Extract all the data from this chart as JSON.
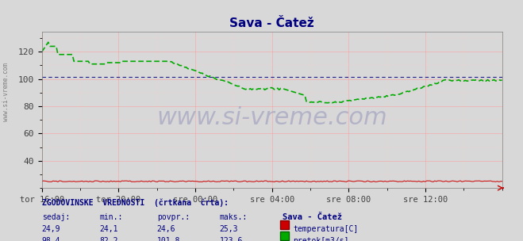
{
  "title": "Sava - Čatež",
  "title_color": "#000080",
  "bg_color": "#d8d8d8",
  "plot_bg_color": "#d8d8d8",
  "grid_color_major": "#ff9999",
  "grid_color_minor": "#ffcccc",
  "x_labels": [
    "tor 16:00",
    "tor 20:00",
    "sre 00:00",
    "sre 04:00",
    "sre 08:00",
    "sre 12:00"
  ],
  "ylim": [
    20,
    135
  ],
  "yticks": [
    40,
    60,
    80,
    100,
    120
  ],
  "watermark": "www.si-vreme.com",
  "watermark_color": "#a0a0c0",
  "left_label": "www.si-vreme.com",
  "left_label_color": "#808080",
  "temp_color": "#cc0000",
  "flow_color": "#00aa00",
  "hist_flow_color": "#000080",
  "temp_value": 24.9,
  "temp_min": 24.1,
  "temp_avg": 24.6,
  "temp_max": 25.3,
  "flow_value": 98.4,
  "flow_min": 82.2,
  "flow_avg": 101.8,
  "flow_max": 123.6,
  "footer_color": "#000080",
  "n_points": 288
}
